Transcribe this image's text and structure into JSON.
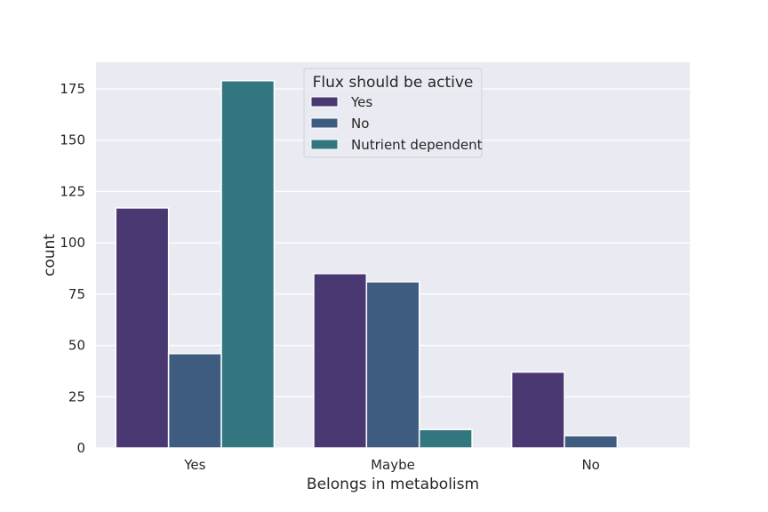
{
  "chart_data": {
    "type": "bar",
    "title": "",
    "xlabel": "Belongs in metabolism",
    "ylabel": "count",
    "categories": [
      "Yes",
      "Maybe",
      "No"
    ],
    "series": [
      {
        "name": "Yes",
        "values": [
          117,
          85,
          37
        ],
        "color": "#4a3873"
      },
      {
        "name": "No",
        "values": [
          46,
          81,
          6
        ],
        "color": "#3e5b80"
      },
      {
        "name": "Nutrient dependent",
        "values": [
          179,
          9,
          0
        ],
        "color": "#32767f"
      }
    ],
    "ylim": [
      0,
      188
    ],
    "yticks": [
      0,
      25,
      50,
      75,
      100,
      125,
      150,
      175
    ],
    "grid": true,
    "legend": {
      "title": "Flux should be active",
      "placement": "top-center"
    },
    "background_color": "#eaeaf2"
  }
}
